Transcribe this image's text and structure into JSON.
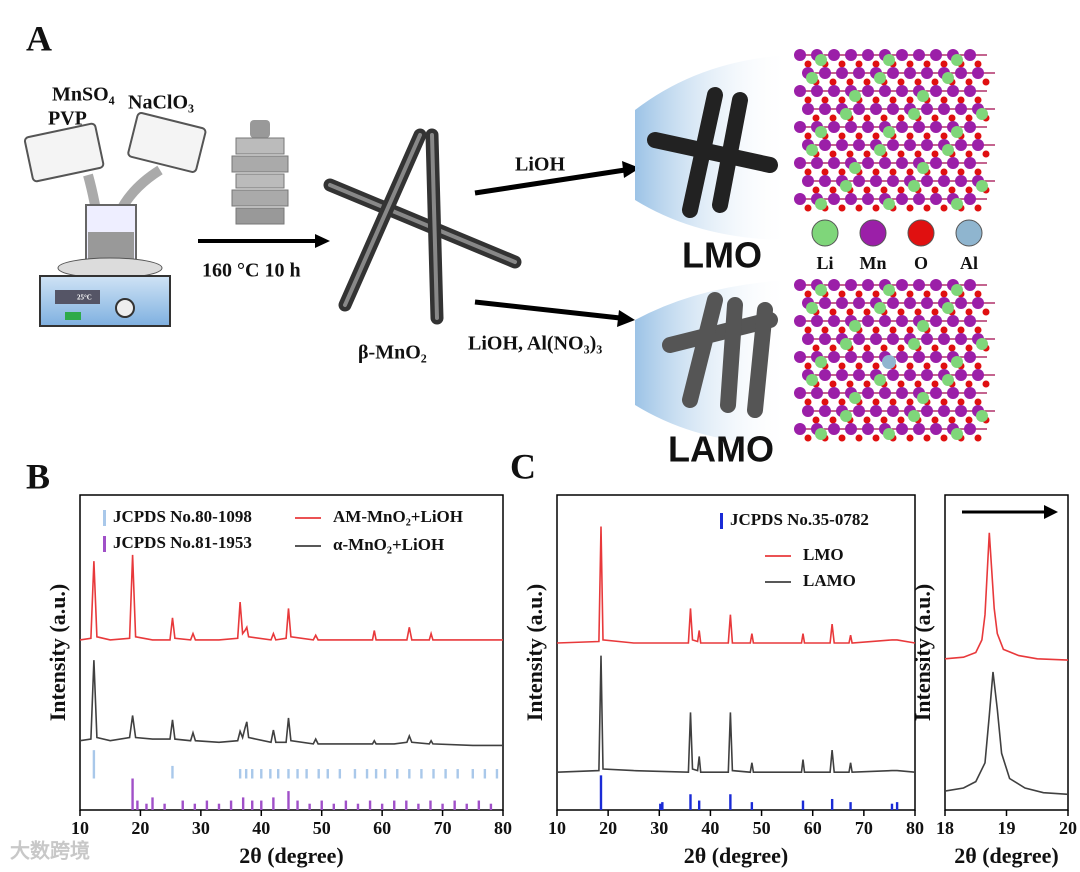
{
  "panel_a": {
    "label": "A",
    "reagents": [
      "MnSO₄",
      "PVP",
      "NaClO₃"
    ],
    "display": "25°C",
    "condition": "160 °C  10 h",
    "intermediate": "β-MnO₂",
    "routes": [
      {
        "reagent": "LiOH",
        "product": "LMO"
      },
      {
        "reagent": "LiOH, Al(NO₃)₃",
        "product": "LAMO"
      }
    ],
    "atoms": [
      {
        "name": "Li",
        "color": "#7fd67a"
      },
      {
        "name": "Mn",
        "color": "#9b1fa8"
      },
      {
        "name": "O",
        "color": "#e01010"
      },
      {
        "name": "Al",
        "color": "#8fb5cf"
      }
    ]
  },
  "panel_b_label": "B",
  "panel_c_label": "C",
  "watermark": "大数跨境",
  "chart_data": [
    {
      "type": "line",
      "xlabel": "2θ (degree)",
      "ylabel": "Intensity (a.u.)",
      "xlim": [
        10,
        80
      ],
      "xticks": [
        10,
        20,
        30,
        40,
        50,
        60,
        70,
        80
      ],
      "ylim": [
        0,
        100
      ],
      "series": [
        {
          "name": "JCPDS No.80-1098",
          "style": "stick",
          "color": "#a9c8ea",
          "base": 10,
          "x": [
            12.3,
            25.3,
            36.5,
            37.5,
            38.5,
            40,
            41.5,
            42.8,
            44.5,
            46,
            47.5,
            49.5,
            51,
            53,
            55.5,
            57.5,
            59,
            60.5,
            62.5,
            64.5,
            66.5,
            68.5,
            70.5,
            72.5,
            75,
            77,
            79
          ],
          "values": [
            9,
            4,
            3,
            3,
            3,
            3,
            3,
            3,
            3,
            3,
            3,
            3,
            3,
            3,
            3,
            3,
            3,
            3,
            3,
            3,
            3,
            3,
            3,
            3,
            3,
            3,
            3
          ]
        },
        {
          "name": "JCPDS No.81-1953",
          "style": "stick",
          "color": "#a050c8",
          "base": 0,
          "x": [
            18.7,
            19.5,
            21,
            22,
            24,
            27,
            29,
            31,
            33,
            35,
            37,
            38.5,
            40,
            42,
            44.5,
            46,
            48,
            50,
            52,
            54,
            56,
            58,
            60,
            62,
            64,
            66,
            68,
            70,
            72,
            74,
            76,
            78
          ],
          "values": [
            10,
            3,
            2,
            4,
            2,
            3,
            2,
            3,
            2,
            3,
            4,
            3,
            3,
            4,
            6,
            3,
            2,
            3,
            2,
            3,
            2,
            3,
            2,
            3,
            3,
            2,
            3,
            2,
            3,
            2,
            3,
            2
          ]
        },
        {
          "name": "AM-MnO₂+LiOH",
          "style": "line",
          "color": "#e8393b",
          "x": [
            10,
            11.8,
            12.3,
            12.8,
            15,
            18.2,
            18.7,
            19.2,
            22,
            24.9,
            25.3,
            25.7,
            28.3,
            28.7,
            29.1,
            33,
            36.1,
            36.5,
            36.9,
            37.3,
            37.6,
            37.9,
            41.6,
            42,
            42.4,
            44.1,
            44.5,
            44.9,
            48.6,
            49,
            49.4,
            55,
            58.4,
            58.7,
            59,
            62,
            64.1,
            64.5,
            64.9,
            67.8,
            68.1,
            68.4,
            75,
            80
          ],
          "values": [
            54,
            54.5,
            79,
            55,
            54,
            54.5,
            81,
            55,
            54,
            54,
            61,
            54.5,
            54,
            56,
            54,
            54,
            54.5,
            66,
            56,
            57,
            58,
            55,
            54,
            56,
            54,
            54.5,
            64,
            55,
            54,
            55.5,
            54,
            54,
            54,
            57,
            54,
            54,
            54,
            58,
            54,
            54,
            56,
            54,
            54,
            54
          ]
        },
        {
          "name": "α-MnO₂+LiOH",
          "style": "line",
          "color": "#404040",
          "x": [
            10,
            11.8,
            12.3,
            12.8,
            15,
            18.2,
            18.7,
            19.2,
            22,
            24.9,
            25.3,
            25.7,
            28.3,
            28.7,
            29.1,
            33,
            36.1,
            36.5,
            36.9,
            37.3,
            37.6,
            37.9,
            41.6,
            42,
            42.4,
            44.1,
            44.5,
            44.9,
            48.6,
            49,
            49.4,
            55,
            58.4,
            58.7,
            59,
            62,
            64.1,
            64.5,
            64.9,
            67.8,
            68.1,
            68.4,
            75,
            80
          ],
          "values": [
            22,
            22.5,
            47.6,
            23,
            22,
            23,
            30,
            23,
            22.5,
            22.5,
            28.6,
            22.5,
            22,
            24.5,
            22,
            21.5,
            22,
            25,
            23,
            26,
            28,
            23,
            21.5,
            25.4,
            21.5,
            21.5,
            29.2,
            22,
            21,
            22.5,
            21,
            21,
            21,
            22,
            21,
            21,
            21.5,
            23.5,
            21.5,
            21,
            22,
            21,
            20.5,
            20.5
          ]
        }
      ]
    },
    {
      "type": "line",
      "xlabel": "2θ (degree)",
      "ylabel": "Intensity (a.u.)",
      "xlim": [
        10,
        80
      ],
      "xticks": [
        10,
        20,
        30,
        40,
        50,
        60,
        70,
        80
      ],
      "ylim": [
        0,
        100
      ],
      "series": [
        {
          "name": "JCPDS No.35-0782",
          "style": "stick",
          "color": "#1a2bd6",
          "base": 0,
          "x": [
            18.6,
            30.2,
            30.6,
            36.1,
            37.8,
            43.9,
            48.1,
            58.1,
            63.8,
            67.4,
            75.5,
            76.5
          ],
          "values": [
            11,
            2,
            2.5,
            5,
            3,
            5,
            2.5,
            3,
            3.5,
            2.5,
            2,
            2.5
          ]
        },
        {
          "name": "LMO",
          "style": "line",
          "color": "#e8393b",
          "x": [
            10,
            18.2,
            18.6,
            19.0,
            25,
            35.7,
            36.1,
            36.5,
            37.5,
            37.8,
            38.1,
            43.5,
            43.9,
            44.3,
            47.8,
            48.1,
            48.4,
            57.8,
            58.1,
            58.4,
            63.4,
            63.8,
            64.2,
            67.1,
            67.4,
            67.7,
            75.5,
            76.5,
            80
          ],
          "values": [
            53,
            53.5,
            90,
            54,
            53,
            53,
            64,
            54,
            53.5,
            57,
            53,
            53,
            62,
            53,
            53,
            56,
            53,
            53,
            56,
            53,
            53,
            59,
            53,
            53,
            55.5,
            53,
            54,
            54,
            53
          ]
        },
        {
          "name": "LAMO",
          "style": "line",
          "color": "#404040",
          "x": [
            10,
            18.2,
            18.6,
            19.0,
            25,
            35.7,
            36.1,
            36.5,
            37.5,
            37.8,
            38.1,
            43.5,
            43.9,
            44.3,
            47.8,
            48.1,
            48.4,
            57.8,
            58.1,
            58.4,
            63.4,
            63.8,
            64.2,
            67.1,
            67.4,
            67.7,
            75.5,
            76.5,
            80
          ],
          "values": [
            12,
            12.5,
            49,
            13,
            12.5,
            12,
            31,
            13,
            12.5,
            17,
            12,
            12,
            31,
            12.5,
            12,
            15,
            12,
            12,
            16,
            12,
            12,
            19,
            12,
            12,
            15,
            12,
            12.5,
            12.5,
            12
          ]
        }
      ]
    },
    {
      "type": "line",
      "xlabel": "2θ (degree)",
      "ylabel": "Intensity (a.u.)",
      "xlim": [
        18,
        20
      ],
      "xticks": [
        18,
        19,
        20
      ],
      "ylim": [
        0,
        100
      ],
      "series": [
        {
          "style": "line",
          "color": "#e8393b",
          "x": [
            18,
            18.3,
            18.5,
            18.6,
            18.65,
            18.72,
            18.8,
            18.85,
            18.95,
            19.2,
            19.5,
            20
          ],
          "values": [
            48,
            48.5,
            50,
            54,
            62,
            88,
            64,
            56,
            51,
            49,
            48,
            47.6
          ]
        },
        {
          "style": "line",
          "color": "#404040",
          "x": [
            18,
            18.3,
            18.5,
            18.65,
            18.72,
            18.78,
            18.85,
            18.92,
            19.05,
            19.3,
            19.6,
            20
          ],
          "values": [
            6,
            7,
            9,
            15,
            30,
            43.8,
            32,
            18,
            10,
            7,
            5.5,
            5
          ]
        }
      ]
    }
  ]
}
